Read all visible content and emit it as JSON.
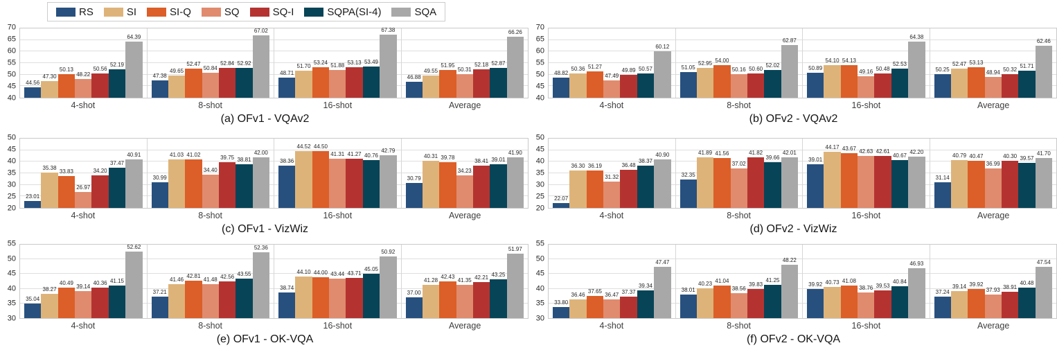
{
  "legend": {
    "entries": [
      {
        "label": "RS",
        "color": "#27507E"
      },
      {
        "label": "SI",
        "color": "#DEB379"
      },
      {
        "label": "SI-Q",
        "color": "#DC5E28"
      },
      {
        "label": "SQ",
        "color": "#E08B6E"
      },
      {
        "label": "SQ-I",
        "color": "#B43330"
      },
      {
        "label": "SQPA(SI-4)",
        "color": "#074457"
      },
      {
        "label": "SQA",
        "color": "#A8A8A8"
      }
    ]
  },
  "chart_data": [
    {
      "type": "bar",
      "caption": "(a) OFv1 - VQAv2",
      "categories": [
        "4-shot",
        "8-shot",
        "16-shot",
        "Average"
      ],
      "ylim": [
        40,
        70
      ],
      "ytick_step": 5,
      "grid": true,
      "legend_position": "top-left",
      "series": [
        {
          "name": "RS",
          "values": [
            44.56,
            47.38,
            48.71,
            46.88
          ]
        },
        {
          "name": "SI",
          "values": [
            47.3,
            49.65,
            51.7,
            49.55
          ]
        },
        {
          "name": "SI-Q",
          "values": [
            50.13,
            52.47,
            53.24,
            51.95
          ]
        },
        {
          "name": "SQ",
          "values": [
            48.22,
            50.84,
            51.88,
            50.31
          ]
        },
        {
          "name": "SQ-I",
          "values": [
            50.56,
            52.84,
            53.13,
            52.18
          ]
        },
        {
          "name": "SQPA(SI-4)",
          "values": [
            52.19,
            52.92,
            53.49,
            52.87
          ]
        },
        {
          "name": "SQA",
          "values": [
            64.39,
            67.02,
            67.38,
            66.26
          ]
        }
      ]
    },
    {
      "type": "bar",
      "caption": "(b) OFv2 - VQAv2",
      "categories": [
        "4-shot",
        "8-shot",
        "16-shot",
        "Average"
      ],
      "ylim": [
        40,
        70
      ],
      "ytick_step": 5,
      "grid": true,
      "series": [
        {
          "name": "RS",
          "values": [
            48.82,
            51.05,
            50.89,
            50.25
          ]
        },
        {
          "name": "SI",
          "values": [
            50.36,
            52.95,
            54.1,
            52.47
          ]
        },
        {
          "name": "SI-Q",
          "values": [
            51.27,
            54.0,
            54.13,
            53.13
          ]
        },
        {
          "name": "SQ",
          "values": [
            47.49,
            50.16,
            49.16,
            48.94
          ]
        },
        {
          "name": "SQ-I",
          "values": [
            49.89,
            50.6,
            50.48,
            50.32
          ]
        },
        {
          "name": "SQPA(SI-4)",
          "values": [
            50.57,
            52.02,
            52.53,
            51.71
          ]
        },
        {
          "name": "SQA",
          "values": [
            60.12,
            62.87,
            64.38,
            62.46
          ]
        }
      ]
    },
    {
      "type": "bar",
      "caption": "(c) OFv1 - VizWiz",
      "categories": [
        "4-shot",
        "8-shot",
        "16-shot",
        "Average"
      ],
      "ylim": [
        20,
        50
      ],
      "ytick_step": 5,
      "grid": true,
      "series": [
        {
          "name": "RS",
          "values": [
            23.01,
            30.99,
            38.36,
            30.79
          ]
        },
        {
          "name": "SI",
          "values": [
            35.38,
            41.03,
            44.52,
            40.31
          ]
        },
        {
          "name": "SI-Q",
          "values": [
            33.83,
            41.02,
            44.5,
            39.78
          ]
        },
        {
          "name": "SQ",
          "values": [
            26.97,
            34.4,
            41.31,
            34.23
          ]
        },
        {
          "name": "SQ-I",
          "values": [
            34.2,
            39.75,
            41.27,
            38.41
          ]
        },
        {
          "name": "SQPA(SI-4)",
          "values": [
            37.47,
            38.81,
            40.76,
            39.01
          ]
        },
        {
          "name": "SQA",
          "values": [
            40.91,
            42.0,
            42.79,
            41.9
          ]
        }
      ]
    },
    {
      "type": "bar",
      "caption": "(d) OFv2 - VizWiz",
      "categories": [
        "4-shot",
        "8-shot",
        "16-shot",
        "Average"
      ],
      "ylim": [
        20,
        50
      ],
      "ytick_step": 5,
      "grid": true,
      "series": [
        {
          "name": "RS",
          "values": [
            22.07,
            32.35,
            39.01,
            31.14
          ]
        },
        {
          "name": "SI",
          "values": [
            36.3,
            41.89,
            44.17,
            40.79
          ]
        },
        {
          "name": "SI-Q",
          "values": [
            36.19,
            41.56,
            43.67,
            40.47
          ]
        },
        {
          "name": "SQ",
          "values": [
            31.32,
            37.02,
            42.63,
            36.99
          ]
        },
        {
          "name": "SQ-I",
          "values": [
            36.48,
            41.82,
            42.61,
            40.3
          ]
        },
        {
          "name": "SQPA(SI-4)",
          "values": [
            38.37,
            39.66,
            40.67,
            39.57
          ]
        },
        {
          "name": "SQA",
          "values": [
            40.9,
            42.01,
            42.2,
            41.7
          ]
        }
      ]
    },
    {
      "type": "bar",
      "caption": "(e) OFv1 - OK-VQA",
      "categories": [
        "4-shot",
        "8-shot",
        "16-shot",
        "Average"
      ],
      "ylim": [
        30,
        55
      ],
      "ytick_step": 5,
      "grid": true,
      "series": [
        {
          "name": "RS",
          "values": [
            35.04,
            37.21,
            38.74,
            37.0
          ]
        },
        {
          "name": "SI",
          "values": [
            38.27,
            41.46,
            44.1,
            41.28
          ]
        },
        {
          "name": "SI-Q",
          "values": [
            40.49,
            42.81,
            44.0,
            42.43
          ]
        },
        {
          "name": "SQ",
          "values": [
            39.14,
            41.48,
            43.44,
            41.35
          ]
        },
        {
          "name": "SQ-I",
          "values": [
            40.36,
            42.56,
            43.71,
            42.21
          ]
        },
        {
          "name": "SQPA(SI-4)",
          "values": [
            41.15,
            43.55,
            45.05,
            43.25
          ]
        },
        {
          "name": "SQA",
          "values": [
            52.62,
            52.36,
            50.92,
            51.97
          ]
        }
      ]
    },
    {
      "type": "bar",
      "caption": "(f) OFv2 - OK-VQA",
      "categories": [
        "4-shot",
        "8-shot",
        "16-shot",
        "Average"
      ],
      "ylim": [
        30,
        55
      ],
      "ytick_step": 5,
      "grid": true,
      "series": [
        {
          "name": "RS",
          "values": [
            33.8,
            38.01,
            39.92,
            37.24
          ]
        },
        {
          "name": "SI",
          "values": [
            36.46,
            40.23,
            40.73,
            39.14
          ]
        },
        {
          "name": "SI-Q",
          "values": [
            37.65,
            41.04,
            41.08,
            39.92
          ]
        },
        {
          "name": "SQ",
          "values": [
            36.47,
            38.56,
            38.76,
            37.93
          ]
        },
        {
          "name": "SQ-I",
          "values": [
            37.37,
            39.83,
            39.53,
            38.91
          ]
        },
        {
          "name": "SQPA(SI-4)",
          "values": [
            39.34,
            41.25,
            40.84,
            40.48
          ]
        },
        {
          "name": "SQA",
          "values": [
            47.47,
            48.22,
            46.93,
            47.54
          ]
        }
      ]
    }
  ]
}
